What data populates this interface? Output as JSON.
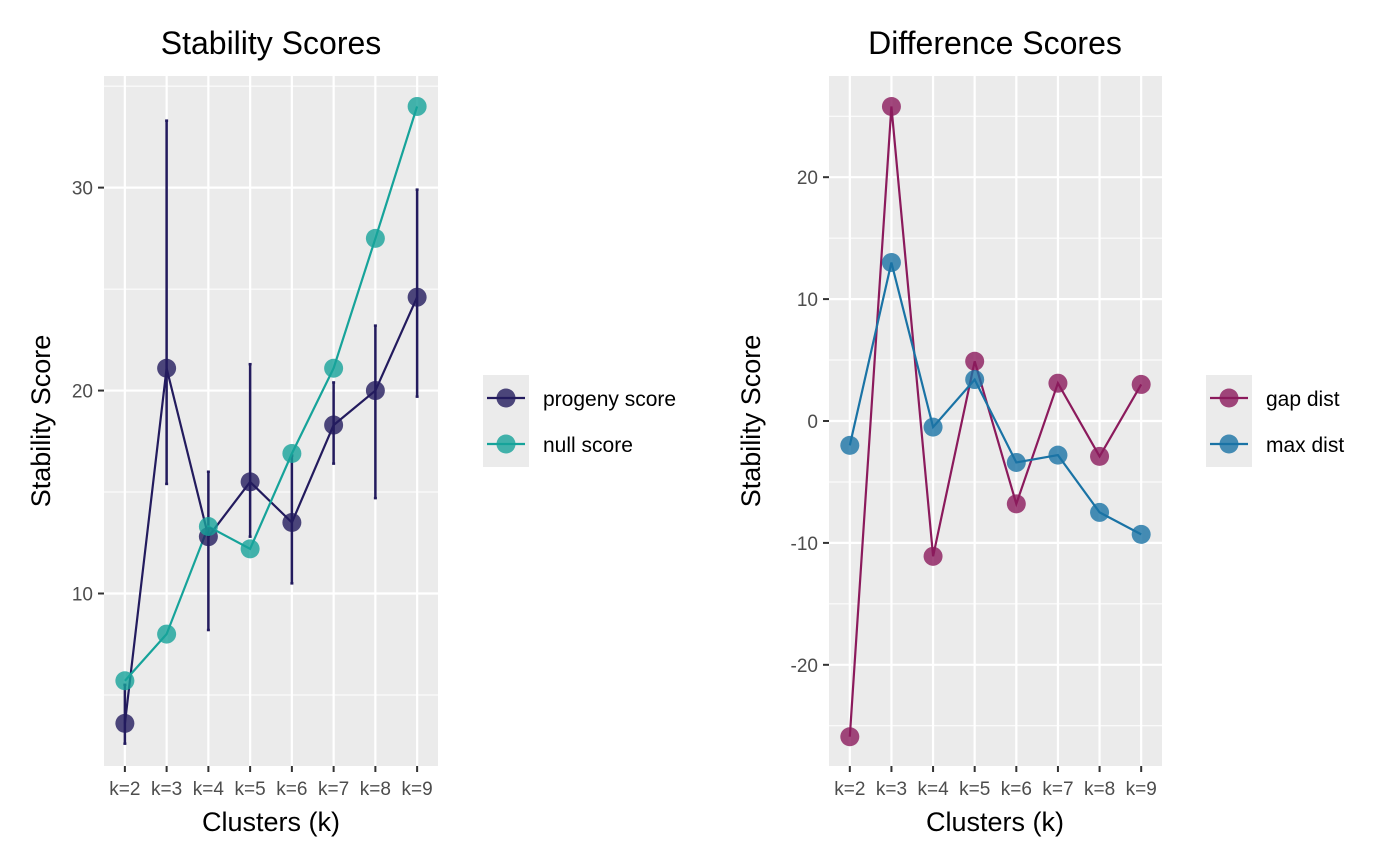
{
  "chart_data": [
    {
      "type": "line",
      "title": "Stability Scores",
      "xlabel": "Clusters (k)",
      "ylabel": "Stability Score",
      "categories": [
        "k=2",
        "k=3",
        "k=4",
        "k=5",
        "k=6",
        "k=7",
        "k=8",
        "k=9"
      ],
      "ylim": [
        1.5,
        35.5
      ],
      "yticks": [
        10,
        20,
        30
      ],
      "ytick_labels": [
        "10",
        "20",
        "30"
      ],
      "grid": true,
      "legend_position": "right",
      "series": [
        {
          "name": "progeny score",
          "color": "#231b5e",
          "values": [
            3.6,
            21.1,
            12.8,
            15.5,
            13.5,
            18.3,
            20.0,
            24.6
          ],
          "error_low": [
            2.6,
            15.4,
            8.2,
            12.8,
            10.5,
            16.4,
            14.7,
            19.7
          ],
          "error_high": [
            5.5,
            33.3,
            16.0,
            21.3,
            16.8,
            20.4,
            23.2,
            29.9
          ]
        },
        {
          "name": "null score",
          "color": "#16a39a",
          "values": [
            5.7,
            8.0,
            13.3,
            12.2,
            16.9,
            21.1,
            27.5,
            34.0
          ]
        }
      ]
    },
    {
      "type": "line",
      "title": "Difference Scores",
      "xlabel": "Clusters (k)",
      "ylabel": "Stability Score",
      "categories": [
        "k=2",
        "k=3",
        "k=4",
        "k=5",
        "k=6",
        "k=7",
        "k=8",
        "k=9"
      ],
      "ylim": [
        -28.3,
        28.3
      ],
      "yticks": [
        -20,
        -10,
        0,
        10,
        20
      ],
      "ytick_labels": [
        "-20",
        "-10",
        "0",
        "10",
        "20"
      ],
      "grid": true,
      "legend_position": "right",
      "series": [
        {
          "name": "gap dist",
          "color": "#8b1a5c",
          "values": [
            -25.9,
            25.8,
            -11.1,
            4.9,
            -6.8,
            3.1,
            -2.9,
            3.0
          ]
        },
        {
          "name": "max dist",
          "color": "#1a73a5",
          "values": [
            -2.0,
            13.0,
            -0.5,
            3.4,
            -3.4,
            -2.8,
            -7.5,
            -9.3
          ]
        }
      ]
    }
  ]
}
